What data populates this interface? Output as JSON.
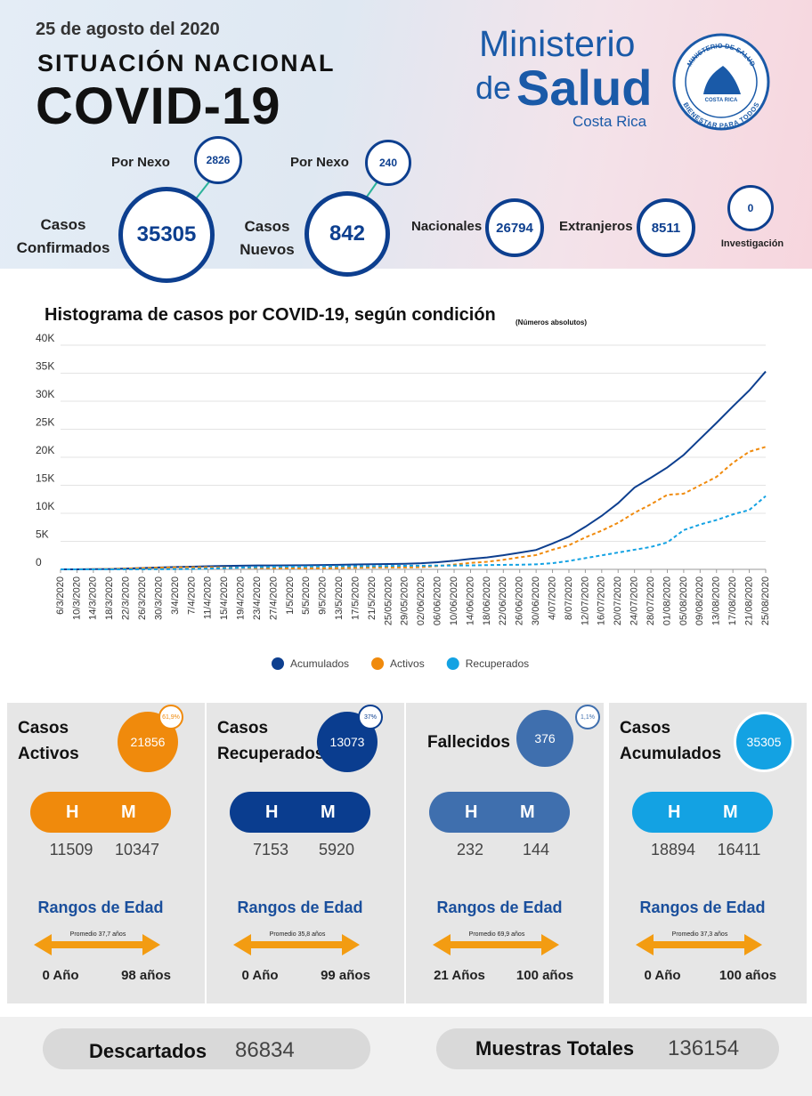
{
  "header": {
    "date": "25 de agosto del 2020",
    "title": "SITUACIÓN NACIONAL",
    "headline": "COVID-19",
    "logo": {
      "line1": "Ministerio",
      "line2": "de",
      "line3": "Salud",
      "line4": "Costa Rica",
      "seal_top": "MINISTERIO DE SALUD",
      "seal_mid": "COSTA RICA",
      "seal_bottom": "BIENESTAR PARA TODOS"
    }
  },
  "stats": {
    "confirmados": {
      "label": "Casos Confirmados",
      "value": 35305,
      "nexo_label": "Por Nexo",
      "nexo": 2826
    },
    "nuevos": {
      "label": "Casos Nuevos",
      "value": 842,
      "nexo_label": "Por Nexo",
      "nexo": 240
    },
    "nacionales": {
      "label": "Nacionales",
      "value": 26794
    },
    "extranjeros": {
      "label": "Extranjeros",
      "value": 8511
    },
    "investigacion": {
      "label": "Investigación",
      "value": 0
    }
  },
  "chart_data": {
    "type": "line",
    "title": "Histograma de casos por COVID-19, según condición",
    "subtitle": "(Números absolutos)",
    "categories": [
      "6/3/2020",
      "10/3/2020",
      "14/3/2020",
      "18/3/2020",
      "22/3/2020",
      "26/3/2020",
      "30/3/2020",
      "3/4/2020",
      "7/4/2020",
      "11/4/2020",
      "15/4/2020",
      "19/4/2020",
      "23/4/2020",
      "27/4/2020",
      "1/5/2020",
      "5/5/2020",
      "9/5/2020",
      "13/5/2020",
      "17/5/2020",
      "21/5/2020",
      "25/05/2020",
      "29/05/2020",
      "02/06/2020",
      "06/06/2020",
      "10/06/2020",
      "14/06/2020",
      "18/06/2020",
      "22/06/2020",
      "26/06/2020",
      "30/06/2020",
      "4/07/2020",
      "8/07/2020",
      "12/07/2020",
      "16/07/2020",
      "20/07/2020",
      "24/07/2020",
      "28/07/2020",
      "01/08/2020",
      "05/08/2020",
      "09/08/2020",
      "13/08/2020",
      "17/08/2020",
      "21/08/2020",
      "25/08/2020"
    ],
    "series": [
      {
        "name": "Acumulados",
        "color": "#0d3f8f",
        "dashed": false,
        "values": [
          1,
          9,
          35,
          69,
          134,
          231,
          330,
          416,
          483,
          558,
          618,
          662,
          687,
          697,
          719,
          742,
          780,
          804,
          866,
          911,
          951,
          1000,
          1084,
          1275,
          1538,
          1871,
          2127,
          2515,
          2979,
          3459,
          4621,
          5836,
          7596,
          9546,
          11811,
          14600,
          16344,
          18187,
          20417,
          23286,
          26129,
          29084,
          31929,
          35305
        ]
      },
      {
        "name": "Activos",
        "color": "#f08a0c",
        "dashed": true,
        "values": [
          1,
          9,
          35,
          67,
          127,
          211,
          297,
          353,
          385,
          380,
          340,
          290,
          240,
          200,
          190,
          190,
          200,
          220,
          280,
          330,
          350,
          330,
          400,
          600,
          850,
          1150,
          1350,
          1700,
          2150,
          2550,
          3500,
          4300,
          5700,
          6900,
          8300,
          10100,
          11600,
          13300,
          13500,
          15000,
          16500,
          19000,
          21000,
          21856
        ]
      },
      {
        "name": "Recuperados",
        "color": "#13a2e3",
        "dashed": true,
        "values": [
          0,
          0,
          0,
          2,
          4,
          8,
          15,
          40,
          60,
          120,
          220,
          320,
          400,
          450,
          480,
          500,
          530,
          550,
          560,
          580,
          600,
          640,
          660,
          670,
          680,
          700,
          760,
          800,
          820,
          900,
          1100,
          1500,
          2000,
          2500,
          3000,
          3500,
          4000,
          4800,
          7000,
          8000,
          8800,
          9800,
          10600,
          13073
        ]
      }
    ],
    "ylim": [
      0,
      40000
    ],
    "yticks": [
      0,
      {
        "value": 5000,
        "label": "5K"
      },
      {
        "value": 10000,
        "label": "10K"
      },
      {
        "value": 15000,
        "label": "15K"
      },
      {
        "value": 20000,
        "label": "20K"
      },
      {
        "value": 25000,
        "label": "25K"
      },
      {
        "value": 30000,
        "label": "30K"
      },
      {
        "value": 35000,
        "label": "35K"
      },
      {
        "value": 40000,
        "label": "40K"
      }
    ],
    "grid": true,
    "legend": "bottom"
  },
  "cards": [
    {
      "title": "Casos Activos",
      "value": 21856,
      "percent": "61,9%",
      "color": "#f08a0c",
      "h_label": "H",
      "m_label": "M",
      "h": 11509,
      "m": 10347,
      "ages_title": "Rangos de Edad",
      "average": "Promedio 37,7 años",
      "min": "0 Año",
      "max": "98 años"
    },
    {
      "title": "Casos Recuperados",
      "value": 13073,
      "percent": "37%",
      "color": "#0a3d8f",
      "h_label": "H",
      "m_label": "M",
      "h": 7153,
      "m": 5920,
      "ages_title": "Rangos de Edad",
      "average": "Promedio 35,8 años",
      "min": "0 Año",
      "max": "99 años"
    },
    {
      "title": "Fallecidos",
      "value": 376,
      "percent": "1,1%",
      "color": "#3f6fae",
      "h_label": "H",
      "m_label": "M",
      "h": 232,
      "m": 144,
      "ages_title": "Rangos de Edad",
      "average": "Promedio 69,9 años",
      "min": "21 Años",
      "max": "100 años"
    },
    {
      "title": "Casos Acumulados",
      "value": 35305,
      "color": "#13a2e3",
      "h_label": "H",
      "m_label": "M",
      "h": 18894,
      "m": 16411,
      "ages_title": "Rangos de Edad",
      "average": "Promedio 37,3 años",
      "min": "0 Año",
      "max": "100 años"
    }
  ],
  "footer": {
    "descartados": {
      "label": "Descartados",
      "value": 86834
    },
    "muestras": {
      "label": "Muestras Totales",
      "value": 136154
    }
  }
}
